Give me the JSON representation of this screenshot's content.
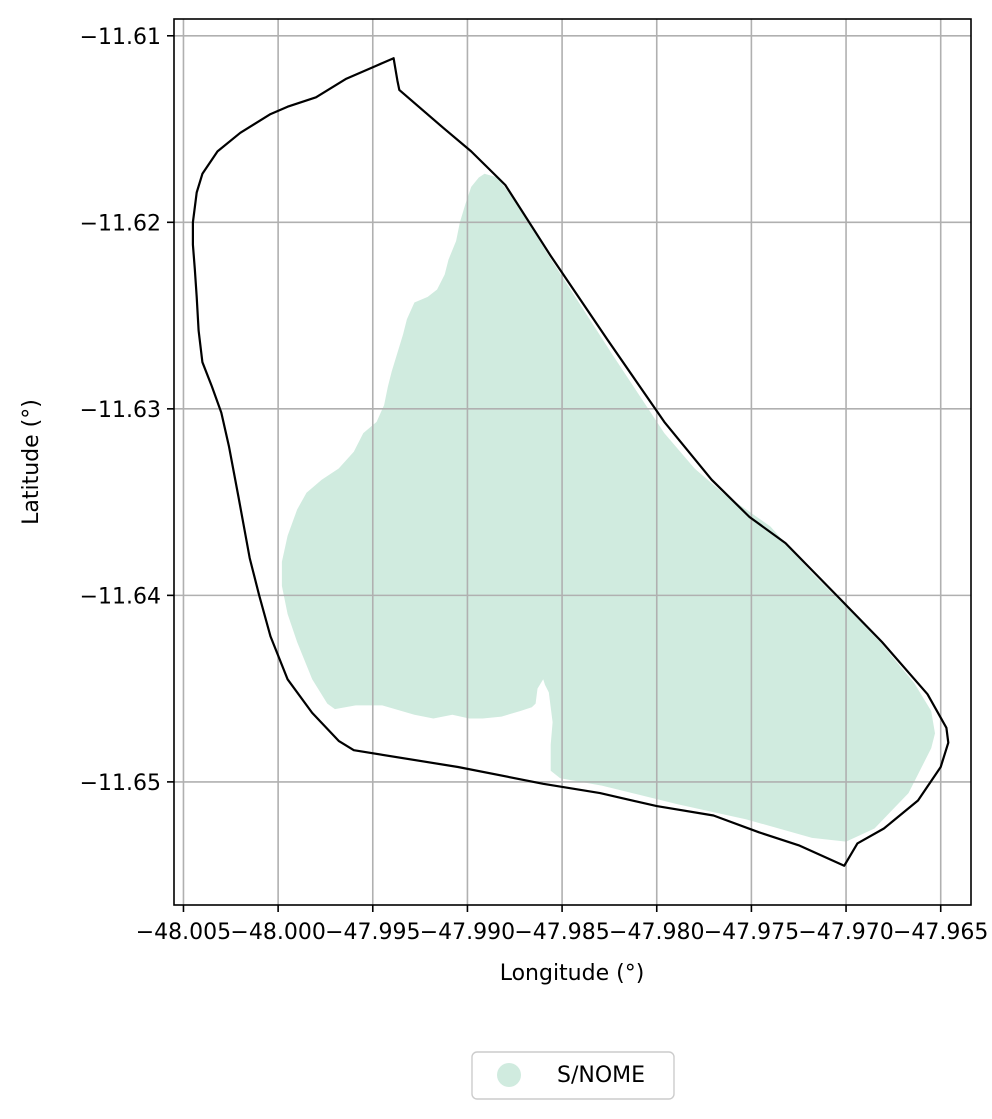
{
  "chart_data": {
    "type": "map",
    "xlabel": "Longitude (°)",
    "ylabel": "Latitude (°)",
    "xlim": [
      -48.0055,
      -47.9634
    ],
    "ylim": [
      -11.6566,
      -11.6091
    ],
    "x_ticks": [
      -48.005,
      -48.0,
      -47.995,
      -47.99,
      -47.985,
      -47.98,
      -47.975,
      -47.97,
      -47.965
    ],
    "x_tick_labels": [
      "−48.005",
      "−48.000",
      "−47.995",
      "−47.990",
      "−47.985",
      "−47.980",
      "−47.975",
      "−47.970",
      "−47.965"
    ],
    "y_ticks": [
      -11.61,
      -11.62,
      -11.63,
      -11.64,
      -11.65
    ],
    "y_tick_labels": [
      "−11.61",
      "−11.62",
      "−11.63",
      "−11.64",
      "−11.65"
    ],
    "grid": true,
    "legend": {
      "placement": "bottom-center",
      "entries": [
        {
          "label": "S/NOME",
          "color": "#d0ebdf",
          "marker": "circle"
        }
      ]
    },
    "layers": [
      {
        "type": "filled-polygon",
        "class": "S/NOME",
        "fill": "#d0ebdf",
        "coordinates": [
          [
            -47.9891,
            -11.6174
          ],
          [
            -47.9884,
            -11.6176
          ],
          [
            -47.9874,
            -11.619
          ],
          [
            -47.9857,
            -11.6218
          ],
          [
            -47.9824,
            -11.627
          ],
          [
            -47.9796,
            -11.6313
          ],
          [
            -47.978,
            -11.6332
          ],
          [
            -47.9764,
            -11.6346
          ],
          [
            -47.974,
            -11.6363
          ],
          [
            -47.9718,
            -11.6388
          ],
          [
            -47.97,
            -11.6406
          ],
          [
            -47.9682,
            -11.6425
          ],
          [
            -47.9664,
            -11.6447
          ],
          [
            -47.9655,
            -11.6462
          ],
          [
            -47.9653,
            -11.6474
          ],
          [
            -47.9655,
            -11.6482
          ],
          [
            -47.9667,
            -11.6506
          ],
          [
            -47.9685,
            -11.6525
          ],
          [
            -47.97,
            -11.6532
          ],
          [
            -47.9718,
            -11.653
          ],
          [
            -47.9753,
            -11.652
          ],
          [
            -47.9789,
            -11.6512
          ],
          [
            -47.9829,
            -11.6502
          ],
          [
            -47.9851,
            -11.6498
          ],
          [
            -47.9856,
            -11.6494
          ],
          [
            -47.9856,
            -11.648
          ],
          [
            -47.9855,
            -11.6468
          ],
          [
            -47.9856,
            -11.646
          ],
          [
            -47.9857,
            -11.6452
          ],
          [
            -47.9859,
            -11.6448
          ],
          [
            -47.986,
            -11.6445
          ],
          [
            -47.9863,
            -11.645
          ],
          [
            -47.9864,
            -11.6458
          ],
          [
            -47.9866,
            -11.646
          ],
          [
            -47.9872,
            -11.6462
          ],
          [
            -47.9882,
            -11.6465
          ],
          [
            -47.9892,
            -11.6466
          ],
          [
            -47.9899,
            -11.6466
          ],
          [
            -47.9908,
            -11.6464
          ],
          [
            -47.9918,
            -11.6466
          ],
          [
            -47.9928,
            -11.6464
          ],
          [
            -47.9945,
            -11.6459
          ],
          [
            -47.9959,
            -11.6459
          ],
          [
            -47.997,
            -11.6461
          ],
          [
            -47.9974,
            -11.6458
          ],
          [
            -47.9982,
            -11.6445
          ],
          [
            -47.999,
            -11.6425
          ],
          [
            -47.9995,
            -11.641
          ],
          [
            -47.9998,
            -11.6395
          ],
          [
            -47.9998,
            -11.6382
          ],
          [
            -47.9995,
            -11.6368
          ],
          [
            -47.999,
            -11.6354
          ],
          [
            -47.9985,
            -11.6345
          ],
          [
            -47.9977,
            -11.6338
          ],
          [
            -47.9968,
            -11.6332
          ],
          [
            -47.996,
            -11.6323
          ],
          [
            -47.9955,
            -11.6313
          ],
          [
            -47.9948,
            -11.6307
          ],
          [
            -47.9944,
            -11.6298
          ],
          [
            -47.9942,
            -11.6288
          ],
          [
            -47.994,
            -11.628
          ],
          [
            -47.9937,
            -11.627
          ],
          [
            -47.9934,
            -11.626
          ],
          [
            -47.9932,
            -11.6252
          ],
          [
            -47.9928,
            -11.6243
          ],
          [
            -47.9921,
            -11.624
          ],
          [
            -47.9916,
            -11.6236
          ],
          [
            -47.9912,
            -11.6228
          ],
          [
            -47.991,
            -11.622
          ],
          [
            -47.9906,
            -11.621
          ],
          [
            -47.9904,
            -11.62
          ],
          [
            -47.9901,
            -11.619
          ],
          [
            -47.9898,
            -11.6181
          ],
          [
            -47.9894,
            -11.6176
          ]
        ]
      },
      {
        "type": "outline-polygon",
        "stroke": "#000000",
        "coordinates": [
          [
            -47.9939,
            -11.6112
          ],
          [
            -47.9938,
            -11.6118
          ],
          [
            -47.9937,
            -11.6124
          ],
          [
            -47.9936,
            -11.6129
          ],
          [
            -47.9912,
            -11.615
          ],
          [
            -47.9898,
            -11.6162
          ],
          [
            -47.988,
            -11.618
          ],
          [
            -47.9856,
            -11.6218
          ],
          [
            -47.9826,
            -11.6263
          ],
          [
            -47.9796,
            -11.6307
          ],
          [
            -47.9771,
            -11.6338
          ],
          [
            -47.9751,
            -11.6358
          ],
          [
            -47.9732,
            -11.6372
          ],
          [
            -47.9705,
            -11.64
          ],
          [
            -47.9681,
            -11.6425
          ],
          [
            -47.9657,
            -11.6453
          ],
          [
            -47.9647,
            -11.6471
          ],
          [
            -47.9646,
            -11.6479
          ],
          [
            -47.965,
            -11.6492
          ],
          [
            -47.9662,
            -11.651
          ],
          [
            -47.968,
            -11.6525
          ],
          [
            -47.9694,
            -11.6533
          ],
          [
            -47.9701,
            -11.6545
          ],
          [
            -47.9725,
            -11.6534
          ],
          [
            -47.9746,
            -11.6527
          ],
          [
            -47.977,
            -11.6518
          ],
          [
            -47.98,
            -11.6513
          ],
          [
            -47.983,
            -11.6506
          ],
          [
            -47.986,
            -11.6501
          ],
          [
            -47.9905,
            -11.6492
          ],
          [
            -47.996,
            -11.6483
          ],
          [
            -47.9968,
            -11.6478
          ],
          [
            -47.9982,
            -11.6463
          ],
          [
            -47.9995,
            -11.6445
          ],
          [
            -48.0004,
            -11.6422
          ],
          [
            -48.001,
            -11.64
          ],
          [
            -48.0015,
            -11.638
          ],
          [
            -48.0021,
            -11.6347
          ],
          [
            -48.0026,
            -11.632
          ],
          [
            -48.003,
            -11.6302
          ],
          [
            -48.0035,
            -11.6288
          ],
          [
            -48.004,
            -11.6275
          ],
          [
            -48.0042,
            -11.6258
          ],
          [
            -48.0043,
            -11.624
          ],
          [
            -48.0044,
            -11.6225
          ],
          [
            -48.0045,
            -11.6212
          ],
          [
            -48.0045,
            -11.62
          ],
          [
            -48.0043,
            -11.6184
          ],
          [
            -48.004,
            -11.6174
          ],
          [
            -48.0032,
            -11.6162
          ],
          [
            -48.002,
            -11.6152
          ],
          [
            -48.0004,
            -11.6142
          ],
          [
            -47.9995,
            -11.6138
          ],
          [
            -47.998,
            -11.6133
          ],
          [
            -47.9964,
            -11.6123
          ],
          [
            -47.9948,
            -11.6116
          ],
          [
            -47.9939,
            -11.6112
          ]
        ]
      }
    ]
  }
}
